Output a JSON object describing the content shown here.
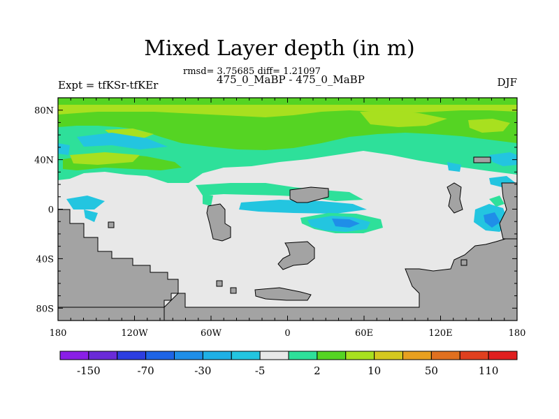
{
  "title": "Mixed Layer depth (in m)",
  "stats": "rmsd= 3.75685 diff= 1.21097",
  "subtitle": "475_0_MaBP - 475_0_MaBP",
  "left_label": "Expt = tfKSr-tfKEr",
  "right_label": "DJF",
  "lat_ticks": [
    "80N",
    "40N",
    "0",
    "40S",
    "80S"
  ],
  "lon_ticks": [
    "180",
    "120W",
    "60W",
    "0",
    "60E",
    "120E",
    "180"
  ],
  "colorbar": {
    "colors": [
      "#8a1fe6",
      "#6a2bd8",
      "#2d3ee0",
      "#1e64e6",
      "#1f8ee8",
      "#1fb0e6",
      "#23c5e0",
      "#e8e8e8",
      "#2ee09a",
      "#55d423",
      "#a8e01f",
      "#d4c81f",
      "#e8a01f",
      "#e0701f",
      "#e0401f",
      "#e01f1f"
    ],
    "labels": [
      "-150",
      "-70",
      "-30",
      "-5",
      "2",
      "10",
      "50",
      "110"
    ]
  },
  "legend_colors": {
    "land": "#a3a3a3",
    "neutral": "#e8e8e8",
    "cyan": "#23c5e0",
    "blue": "#1f8ee8",
    "teal_green": "#2ee09a",
    "green": "#55d423",
    "yellow_green": "#a8e01f"
  }
}
